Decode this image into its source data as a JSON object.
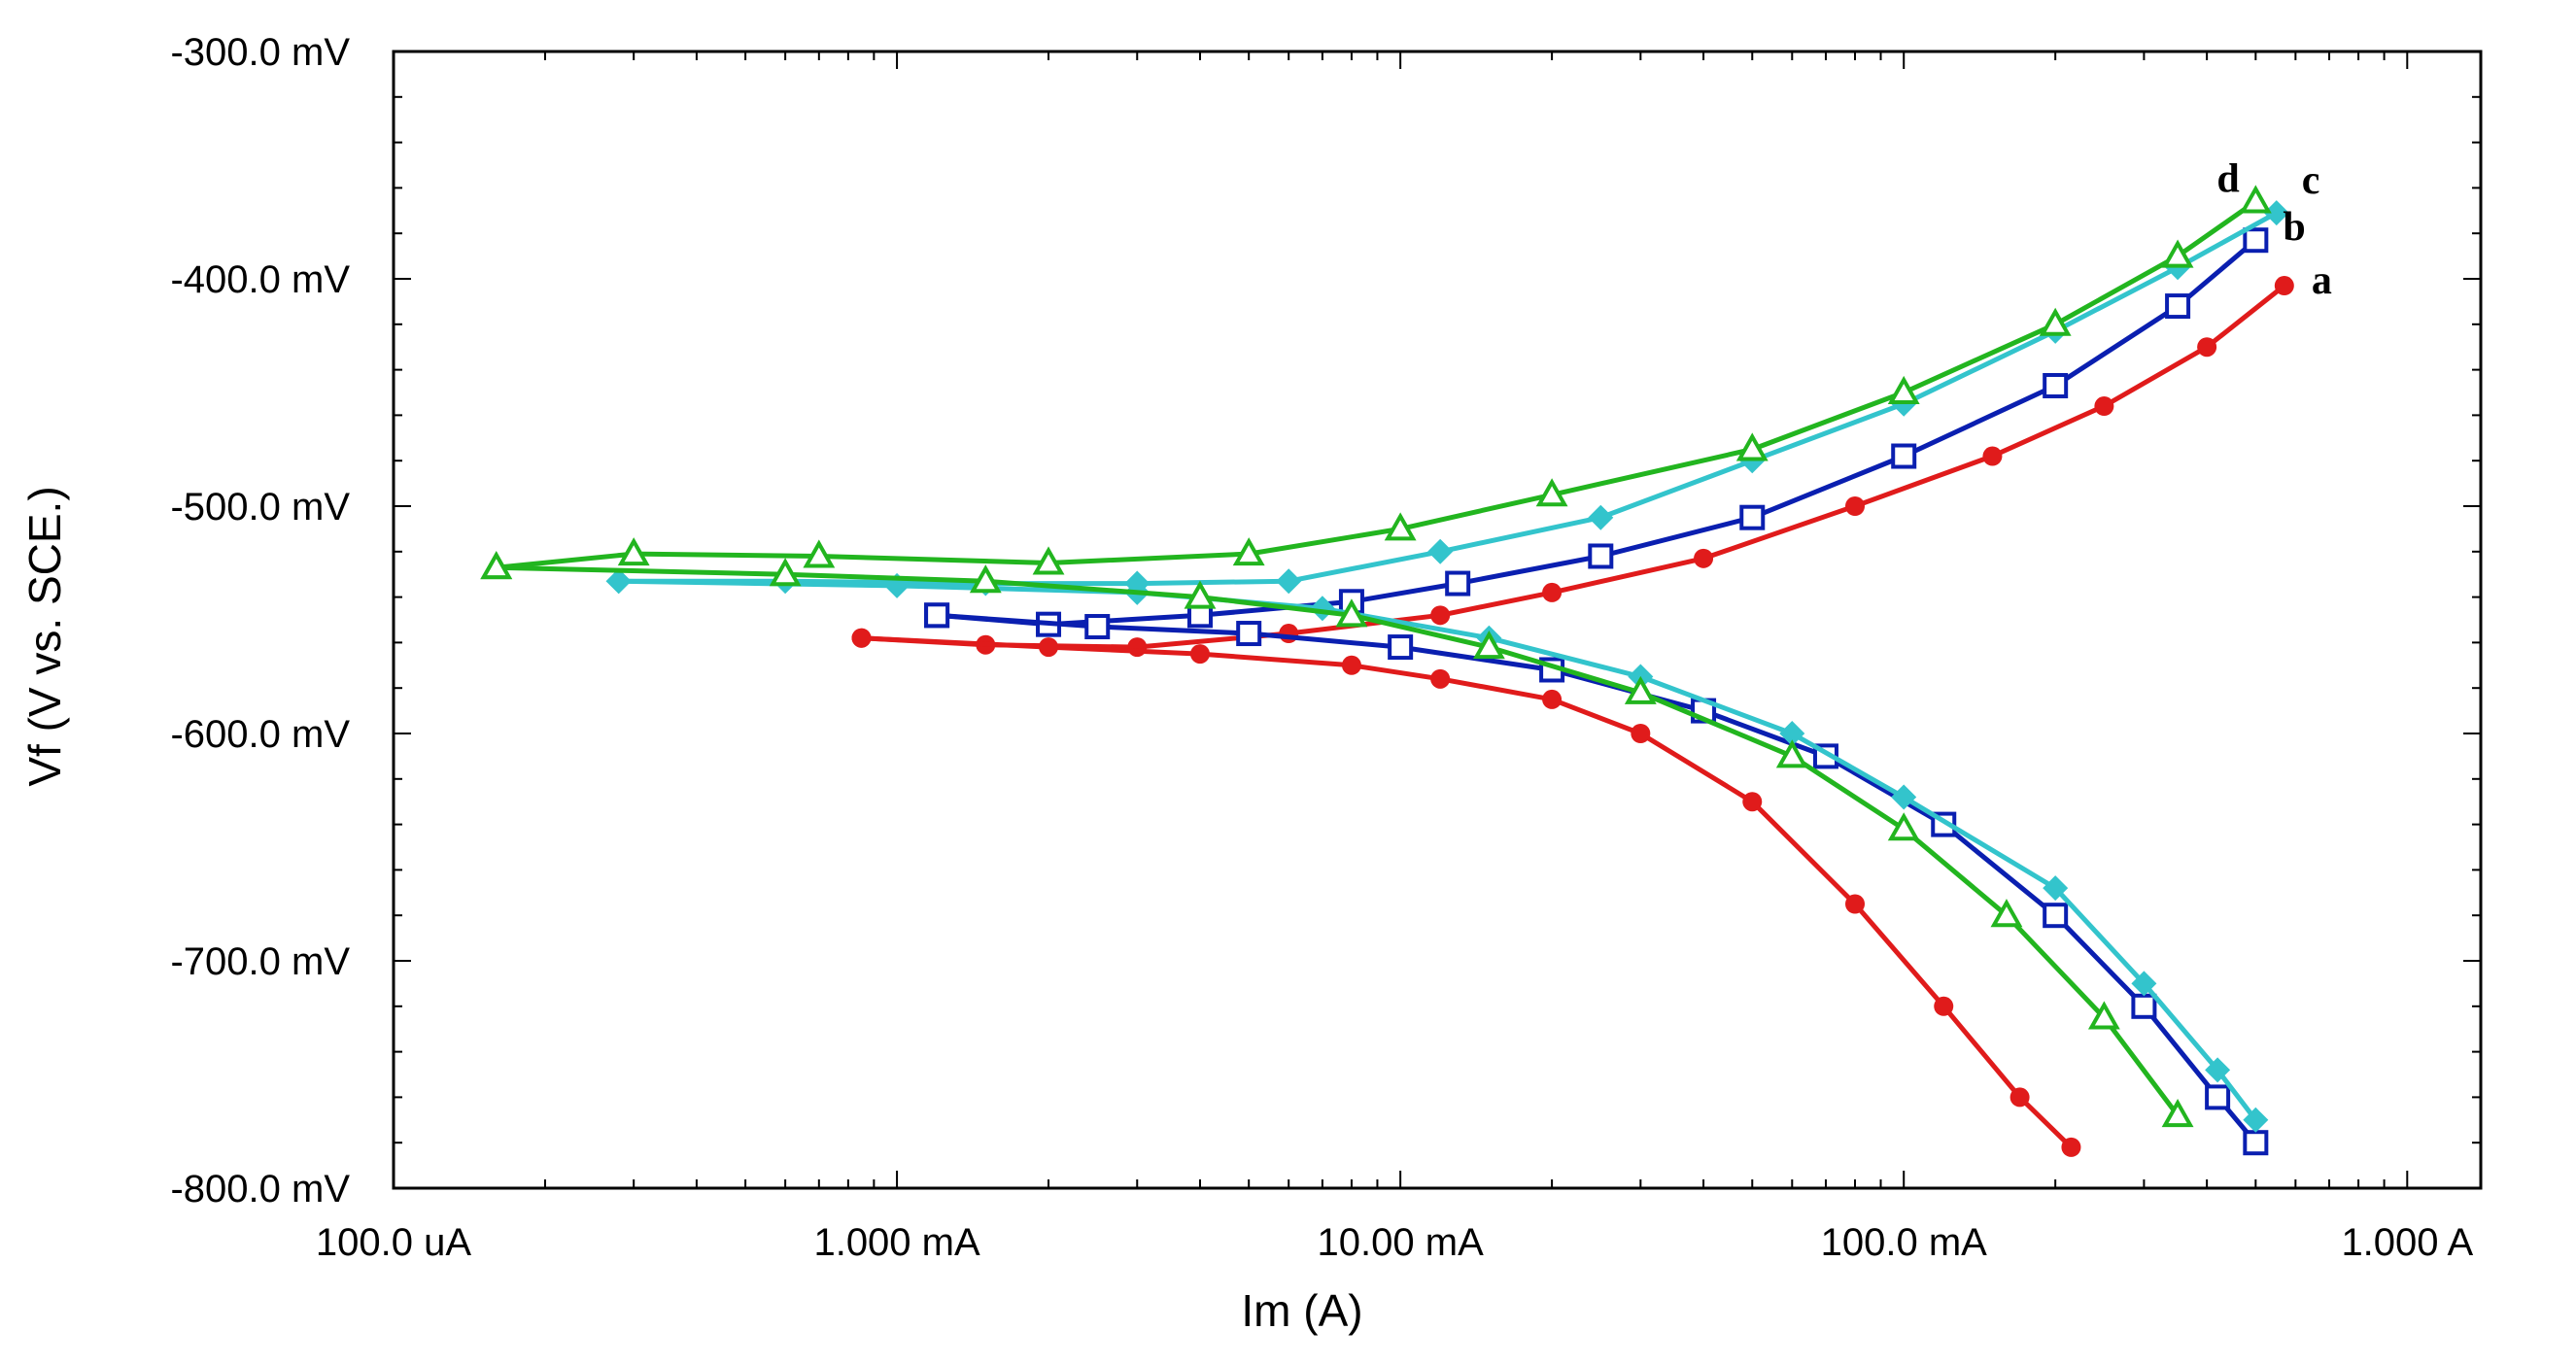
{
  "chart_data": {
    "type": "line",
    "title": "",
    "xlabel": "Im (A)",
    "ylabel": "Vf (V vs. SCE.)",
    "xscale": "log",
    "xlim": [
      0.0001,
      1.4
    ],
    "ylim": [
      -800,
      -300
    ],
    "x_ticks": [
      {
        "value": 0.0001,
        "label": "100.0 uA"
      },
      {
        "value": 0.001,
        "label": "1.000 mA"
      },
      {
        "value": 0.01,
        "label": "10.00 mA"
      },
      {
        "value": 0.1,
        "label": "100.0 mA"
      },
      {
        "value": 1,
        "label": "1.000 A"
      }
    ],
    "y_ticks": [
      {
        "value": -300,
        "label": "-300.0 mV"
      },
      {
        "value": -400,
        "label": "-400.0 mV"
      },
      {
        "value": -500,
        "label": "-500.0 mV"
      },
      {
        "value": -600,
        "label": "-600.0 mV"
      },
      {
        "value": -700,
        "label": "-700.0 mV"
      },
      {
        "value": -800,
        "label": "-800.0 mV"
      }
    ],
    "series": [
      {
        "name": "a",
        "color": "#e01b1b",
        "marker": "filled-circle",
        "anodic": [
          [
            0.00085,
            -558
          ],
          [
            0.0015,
            -561
          ],
          [
            0.003,
            -562
          ],
          [
            0.006,
            -556
          ],
          [
            0.012,
            -548
          ],
          [
            0.02,
            -538
          ],
          [
            0.04,
            -523
          ],
          [
            0.08,
            -500
          ],
          [
            0.15,
            -478
          ],
          [
            0.25,
            -456
          ],
          [
            0.4,
            -430
          ],
          [
            0.57,
            -403
          ]
        ],
        "cathodic": [
          [
            0.00085,
            -558
          ],
          [
            0.002,
            -562
          ],
          [
            0.004,
            -565
          ],
          [
            0.008,
            -570
          ],
          [
            0.012,
            -576
          ],
          [
            0.02,
            -585
          ],
          [
            0.03,
            -600
          ],
          [
            0.05,
            -630
          ],
          [
            0.08,
            -675
          ],
          [
            0.12,
            -720
          ],
          [
            0.17,
            -760
          ],
          [
            0.215,
            -782
          ]
        ]
      },
      {
        "name": "b",
        "color": "#0a1fb0",
        "marker": "open-square",
        "anodic": [
          [
            0.0012,
            -548
          ],
          [
            0.002,
            -552
          ],
          [
            0.004,
            -548
          ],
          [
            0.008,
            -542
          ],
          [
            0.013,
            -534
          ],
          [
            0.025,
            -522
          ],
          [
            0.05,
            -505
          ],
          [
            0.1,
            -478
          ],
          [
            0.2,
            -447
          ],
          [
            0.35,
            -412
          ],
          [
            0.5,
            -383
          ]
        ],
        "cathodic": [
          [
            0.0012,
            -548
          ],
          [
            0.0025,
            -553
          ],
          [
            0.005,
            -556
          ],
          [
            0.01,
            -562
          ],
          [
            0.02,
            -572
          ],
          [
            0.04,
            -590
          ],
          [
            0.07,
            -610
          ],
          [
            0.12,
            -640
          ],
          [
            0.2,
            -680
          ],
          [
            0.3,
            -720
          ],
          [
            0.42,
            -760
          ],
          [
            0.5,
            -780
          ]
        ]
      },
      {
        "name": "c",
        "color": "#33c4cc",
        "marker": "filled-diamond",
        "anodic": [
          [
            0.00028,
            -533
          ],
          [
            0.0006,
            -533
          ],
          [
            0.0015,
            -534
          ],
          [
            0.003,
            -534
          ],
          [
            0.006,
            -533
          ],
          [
            0.012,
            -520
          ],
          [
            0.025,
            -505
          ],
          [
            0.05,
            -480
          ],
          [
            0.1,
            -455
          ],
          [
            0.2,
            -423
          ],
          [
            0.35,
            -395
          ],
          [
            0.55,
            -371
          ]
        ],
        "cathodic": [
          [
            0.00028,
            -533
          ],
          [
            0.001,
            -535
          ],
          [
            0.003,
            -538
          ],
          [
            0.007,
            -545
          ],
          [
            0.015,
            -558
          ],
          [
            0.03,
            -575
          ],
          [
            0.06,
            -600
          ],
          [
            0.1,
            -628
          ],
          [
            0.2,
            -668
          ],
          [
            0.3,
            -710
          ],
          [
            0.42,
            -748
          ],
          [
            0.5,
            -770
          ]
        ]
      },
      {
        "name": "d",
        "color": "#22b51f",
        "marker": "open-triangle",
        "anodic": [
          [
            0.00016,
            -527
          ],
          [
            0.0003,
            -521
          ],
          [
            0.0007,
            -522
          ],
          [
            0.002,
            -525
          ],
          [
            0.005,
            -521
          ],
          [
            0.01,
            -510
          ],
          [
            0.02,
            -495
          ],
          [
            0.05,
            -475
          ],
          [
            0.1,
            -450
          ],
          [
            0.2,
            -420
          ],
          [
            0.35,
            -390
          ],
          [
            0.5,
            -366
          ]
        ],
        "cathodic": [
          [
            0.00016,
            -527
          ],
          [
            0.0006,
            -530
          ],
          [
            0.0015,
            -533
          ],
          [
            0.004,
            -540
          ],
          [
            0.008,
            -548
          ],
          [
            0.015,
            -562
          ],
          [
            0.03,
            -582
          ],
          [
            0.06,
            -610
          ],
          [
            0.1,
            -642
          ],
          [
            0.16,
            -680
          ],
          [
            0.25,
            -725
          ],
          [
            0.35,
            -768
          ]
        ]
      }
    ]
  }
}
